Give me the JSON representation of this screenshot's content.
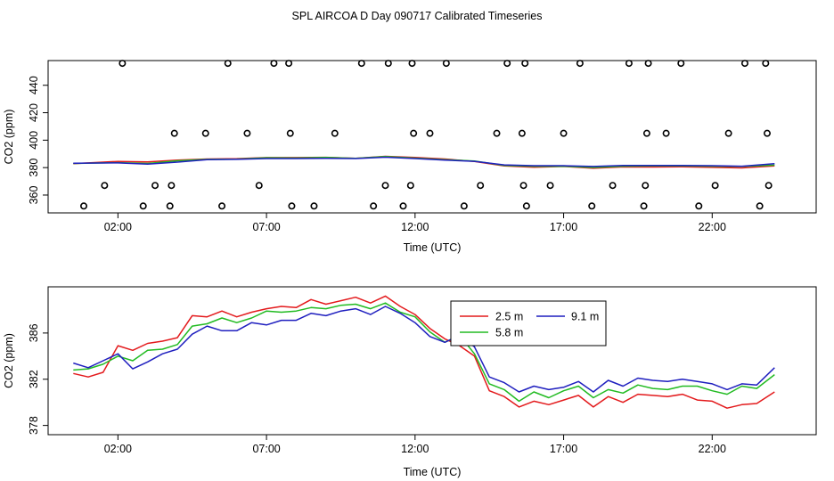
{
  "figure_title": "SPL AIRCOA D  Day 090717  Calibrated Timeseries",
  "colors": {
    "2.5 m": "#e31a1c",
    "5.8 m": "#22bb22",
    "9.1 m": "#1f1fbf",
    "frame": "#000000"
  },
  "chart_data": [
    {
      "type": "line",
      "title": "SPL AIRCOA D  Day 090717  Calibrated Timeseries",
      "xlabel": "Time (UTC)",
      "ylabel": "CO2 (ppm)",
      "x_unit": "hours UTC",
      "xlim": [
        -0.35,
        25.5
      ],
      "ylim": [
        347,
        458
      ],
      "x_ticks": [
        2,
        7,
        12,
        17,
        22
      ],
      "x_tick_labels": [
        "02:00",
        "07:00",
        "12:00",
        "17:00",
        "22:00"
      ],
      "y_ticks": [
        360,
        380,
        400,
        420,
        440
      ],
      "y_tick_labels": [
        "360",
        "380",
        "400",
        "420",
        "440"
      ],
      "grid": false,
      "series": [
        {
          "name": "2.5 m",
          "x": [
            0.5,
            2,
            3,
            4,
            5,
            6,
            7,
            8,
            9,
            10,
            11,
            12,
            13,
            14,
            15,
            16,
            17,
            18,
            19,
            20,
            21,
            22,
            23,
            24.1
          ],
          "y": [
            382.8,
            384.5,
            384.2,
            385.5,
            386.3,
            386.5,
            387.3,
            387.3,
            387.5,
            386.8,
            388.2,
            387.4,
            386.3,
            384.5,
            381.2,
            380.3,
            380.8,
            379.5,
            380.5,
            380.4,
            380.6,
            380.2,
            379.8,
            381.2
          ]
        },
        {
          "name": "5.8 m",
          "x": [
            0.5,
            2,
            3,
            4,
            5,
            6,
            7,
            8,
            9,
            10,
            11,
            12,
            13,
            14,
            15,
            16,
            17,
            18,
            19,
            20,
            21,
            22,
            23,
            24.1
          ],
          "y": [
            383.0,
            383.6,
            383.0,
            385.0,
            386.0,
            386.2,
            387.2,
            387.0,
            387.4,
            386.8,
            388.0,
            386.9,
            385.8,
            384.8,
            381.6,
            380.9,
            381.0,
            380.1,
            381.0,
            381.2,
            381.2,
            381.0,
            380.8,
            381.8
          ]
        },
        {
          "name": "9.1 m",
          "x": [
            0.5,
            2,
            3,
            4,
            5,
            6,
            7,
            8,
            9,
            10,
            11,
            12,
            13,
            14,
            15,
            16,
            17,
            18,
            19,
            20,
            21,
            22,
            23,
            24.1
          ],
          "y": [
            383.2,
            383.4,
            382.6,
            384.0,
            385.8,
            386.0,
            386.6,
            386.6,
            386.8,
            386.6,
            387.6,
            386.6,
            385.4,
            384.6,
            382.0,
            381.4,
            381.4,
            380.8,
            381.6,
            381.6,
            381.6,
            381.4,
            381.0,
            382.8
          ]
        },
        {
          "name": "calibration points",
          "style": "open circles",
          "x": [
            0.85,
            1.55,
            2.15,
            2.85,
            3.25,
            3.75,
            3.8,
            3.9,
            4.95,
            5.7,
            5.5,
            6.35,
            6.75,
            7.25,
            7.75,
            7.8,
            7.85,
            8.6,
            9.3,
            10.2,
            10.6,
            11.0,
            11.1,
            11.6,
            11.85,
            11.9,
            11.95,
            12.5,
            13.05,
            13.65,
            14.2,
            14.75,
            15.1,
            15.6,
            15.65,
            15.7,
            15.75,
            16.55,
            17.0,
            17.55,
            17.95,
            18.65,
            19.2,
            19.7,
            19.75,
            19.8,
            19.85,
            20.45,
            20.95,
            21.55,
            22.1,
            22.55,
            23.1,
            23.6,
            23.8,
            23.85,
            23.9
          ],
          "y": [
            352,
            367,
            456,
            352,
            367,
            352,
            367,
            405,
            405,
            456,
            352,
            405,
            367,
            456,
            456,
            405,
            352,
            352,
            405,
            456,
            352,
            367,
            456,
            352,
            367,
            456,
            405,
            405,
            456,
            352,
            367,
            405,
            456,
            405,
            367,
            456,
            352,
            367,
            405,
            456,
            352,
            367,
            456,
            352,
            367,
            405,
            456,
            405,
            456,
            352,
            367,
            405,
            456,
            352,
            456,
            405,
            367
          ]
        }
      ]
    },
    {
      "type": "line",
      "title": "",
      "xlabel": "Time (UTC)",
      "ylabel": "CO2 (ppm)",
      "x_unit": "hours UTC",
      "xlim": [
        -0.35,
        25.5
      ],
      "ylim": [
        377.2,
        390.0
      ],
      "x_ticks": [
        2,
        7,
        12,
        17,
        22
      ],
      "x_tick_labels": [
        "02:00",
        "07:00",
        "12:00",
        "17:00",
        "22:00"
      ],
      "y_ticks": [
        378,
        382,
        386
      ],
      "y_tick_labels": [
        "378",
        "382",
        "386"
      ],
      "grid": false,
      "legend": {
        "placement": "upper-middle",
        "entries": [
          "2.5 m",
          "5.8 m",
          "9.1 m"
        ]
      },
      "series": [
        {
          "name": "2.5 m",
          "x": [
            0.5,
            1,
            1.5,
            2,
            2.5,
            3,
            3.5,
            4,
            4.5,
            5,
            5.5,
            6,
            6.5,
            7,
            7.5,
            8,
            8.5,
            9,
            9.5,
            10,
            10.5,
            11,
            11.5,
            12,
            12.5,
            13,
            13.5,
            14,
            14.5,
            15,
            15.5,
            16,
            16.5,
            17,
            17.5,
            18,
            18.5,
            19,
            19.5,
            20,
            20.5,
            21,
            21.5,
            22,
            22.5,
            23,
            23.5,
            24.1
          ],
          "y": [
            382.5,
            382.2,
            382.6,
            384.9,
            384.5,
            385.1,
            385.3,
            385.6,
            387.5,
            387.4,
            387.9,
            387.4,
            387.8,
            388.1,
            388.3,
            388.2,
            388.9,
            388.5,
            388.8,
            389.1,
            388.6,
            389.2,
            388.3,
            387.6,
            386.4,
            385.5,
            384.9,
            384.0,
            381.0,
            380.5,
            379.6,
            380.1,
            379.8,
            380.2,
            380.6,
            379.6,
            380.5,
            380.0,
            380.7,
            380.6,
            380.5,
            380.7,
            380.2,
            380.1,
            379.5,
            379.8,
            379.9,
            380.9
          ]
        },
        {
          "name": "5.8 m",
          "x": [
            0.5,
            1,
            1.5,
            2,
            2.5,
            3,
            3.5,
            4,
            4.5,
            5,
            5.5,
            6,
            6.5,
            7,
            7.5,
            8,
            8.5,
            9,
            9.5,
            10,
            10.5,
            11,
            11.5,
            12,
            12.5,
            13,
            13.5,
            14,
            14.5,
            15,
            15.5,
            16,
            16.5,
            17,
            17.5,
            18,
            18.5,
            19,
            19.5,
            20,
            20.5,
            21,
            21.5,
            22,
            22.5,
            23,
            23.5,
            24.1
          ],
          "y": [
            382.8,
            382.9,
            383.3,
            384.0,
            383.6,
            384.5,
            384.6,
            385.0,
            386.6,
            386.8,
            387.3,
            386.9,
            387.3,
            387.9,
            387.8,
            387.9,
            388.2,
            388.1,
            388.4,
            388.5,
            388.1,
            388.6,
            387.8,
            387.4,
            386.1,
            385.2,
            385.8,
            384.2,
            381.6,
            381.1,
            380.1,
            380.9,
            380.4,
            381.0,
            381.4,
            380.4,
            381.1,
            380.8,
            381.5,
            381.2,
            381.1,
            381.4,
            381.4,
            381.0,
            380.7,
            381.4,
            381.2,
            382.4
          ]
        },
        {
          "name": "9.1 m",
          "x": [
            0.5,
            1,
            1.5,
            2,
            2.5,
            3,
            3.5,
            4,
            4.5,
            5,
            5.5,
            6,
            6.5,
            7,
            7.5,
            8,
            8.5,
            9,
            9.5,
            10,
            10.5,
            11,
            11.5,
            12,
            12.5,
            13,
            13.5,
            14,
            14.5,
            15,
            15.5,
            16,
            16.5,
            17,
            17.5,
            18,
            18.5,
            19,
            19.5,
            20,
            20.5,
            21,
            21.5,
            22,
            22.5,
            23,
            23.5,
            24.1
          ],
          "y": [
            383.4,
            383.0,
            383.6,
            384.2,
            382.9,
            383.5,
            384.2,
            384.6,
            385.9,
            386.6,
            386.2,
            386.2,
            386.9,
            386.7,
            387.1,
            387.1,
            387.7,
            387.5,
            387.9,
            388.1,
            387.6,
            388.3,
            387.7,
            386.9,
            385.7,
            385.2,
            385.8,
            384.8,
            382.2,
            381.7,
            380.9,
            381.4,
            381.1,
            381.3,
            381.8,
            380.9,
            381.9,
            381.4,
            382.1,
            381.9,
            381.8,
            382.0,
            381.8,
            381.6,
            381.1,
            381.6,
            381.5,
            383.0
          ]
        }
      ]
    }
  ]
}
